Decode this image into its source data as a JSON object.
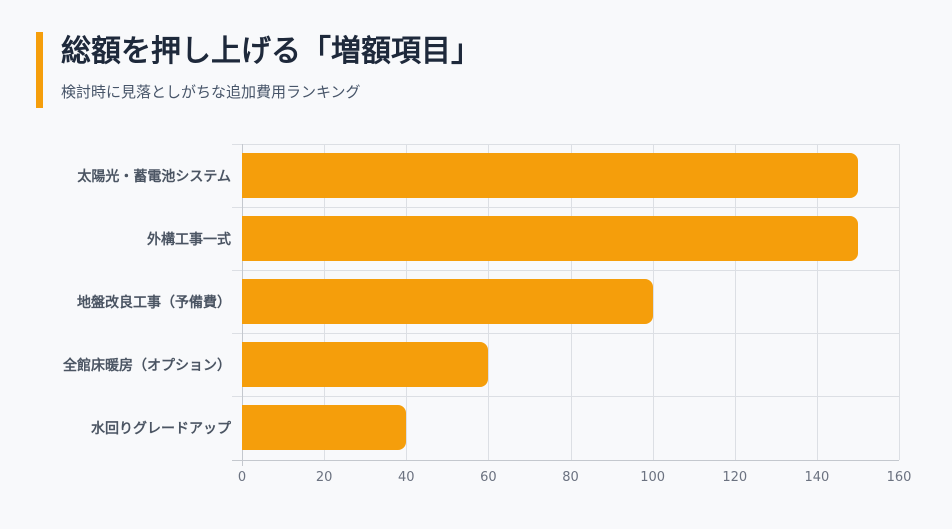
{
  "header": {
    "title": "総額を押し上げる「増額項目」",
    "subtitle": "検討時に見落としがちな追加費用ランキング"
  },
  "colors": {
    "accent": "#f59e0b",
    "title": "#1e293b",
    "subtitle": "#475569",
    "grid": "#dcdfe4",
    "background": "#f8f9fb"
  },
  "chart_data": {
    "type": "bar",
    "orientation": "horizontal",
    "title": "総額を押し上げる「増額項目」",
    "subtitle": "検討時に見落としがちな追加費用ランキング",
    "categories": [
      "太陽光・蓄電池システム",
      "外構工事一式",
      "地盤改良工事（予備費）",
      "全館床暖房（オプション）",
      "水回りグレードアップ"
    ],
    "values": [
      150,
      150,
      100,
      60,
      40
    ],
    "xlabel": "",
    "ylabel": "",
    "xlim": [
      0,
      160
    ],
    "xticks": [
      "0",
      "20",
      "40",
      "60",
      "80",
      "100",
      "120",
      "140",
      "160"
    ],
    "grid": true,
    "legend": null,
    "bar_color": "#f59e0b"
  }
}
